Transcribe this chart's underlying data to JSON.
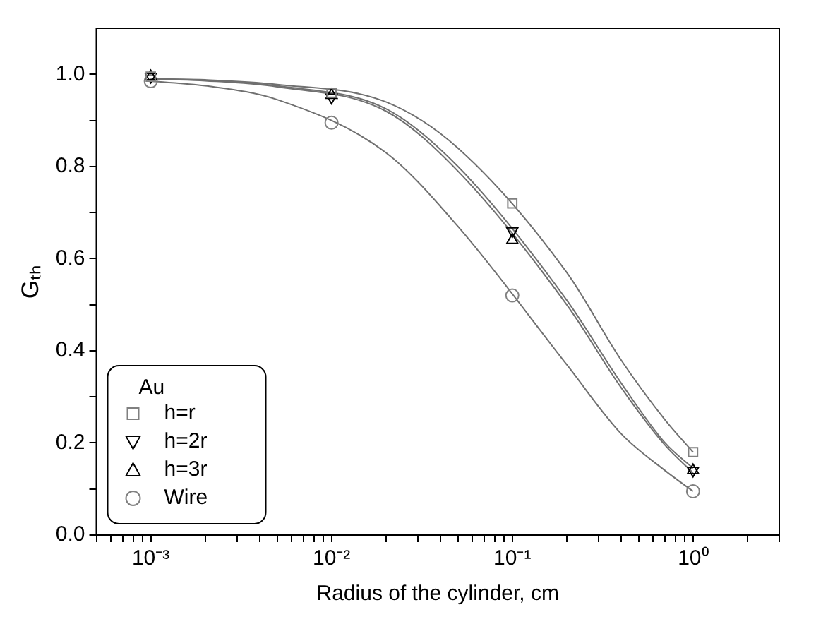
{
  "chart_data": {
    "type": "scatter",
    "xlabel": "Radius of the cylinder, cm",
    "ylabel": "Gₜₕ",
    "log": "x",
    "legend": "bottom left",
    "legend_title": "Au",
    "grid": false,
    "xlim": [
      0.0005,
      3
    ],
    "ylim": [
      0,
      1.1
    ],
    "xticks": [
      {
        "value": 0.0005,
        "label": null
      },
      {
        "value": 0.0006,
        "label": null
      },
      {
        "value": 0.0007,
        "label": null
      },
      {
        "value": 0.0008,
        "label": null
      },
      {
        "value": 0.0009,
        "label": null
      },
      {
        "value": 0.001,
        "label": "10⁻³"
      },
      {
        "value": 0.002,
        "label": null
      },
      {
        "value": 0.003,
        "label": null
      },
      {
        "value": 0.004,
        "label": null
      },
      {
        "value": 0.005,
        "label": null
      },
      {
        "value": 0.006,
        "label": null
      },
      {
        "value": 0.007,
        "label": null
      },
      {
        "value": 0.008,
        "label": null
      },
      {
        "value": 0.009,
        "label": null
      },
      {
        "value": 0.01,
        "label": "10⁻²"
      },
      {
        "value": 0.02,
        "label": null
      },
      {
        "value": 0.03,
        "label": null
      },
      {
        "value": 0.04,
        "label": null
      },
      {
        "value": 0.05,
        "label": null
      },
      {
        "value": 0.06,
        "label": null
      },
      {
        "value": 0.07,
        "label": null
      },
      {
        "value": 0.08,
        "label": null
      },
      {
        "value": 0.09,
        "label": null
      },
      {
        "value": 0.1,
        "label": "10⁻¹"
      },
      {
        "value": 0.2,
        "label": null
      },
      {
        "value": 0.3,
        "label": null
      },
      {
        "value": 0.4,
        "label": null
      },
      {
        "value": 0.5,
        "label": null
      },
      {
        "value": 0.6,
        "label": null
      },
      {
        "value": 0.7,
        "label": null
      },
      {
        "value": 0.8,
        "label": null
      },
      {
        "value": 0.9,
        "label": null
      },
      {
        "value": 1,
        "label": "10⁰"
      },
      {
        "value": 2,
        "label": null
      },
      {
        "value": 3,
        "label": null
      }
    ],
    "yticks": [
      {
        "value": 0,
        "label": "0.0"
      },
      {
        "value": 0.1,
        "label": null
      },
      {
        "value": 0.2,
        "label": "0.2"
      },
      {
        "value": 0.3,
        "label": null
      },
      {
        "value": 0.4,
        "label": "0.4"
      },
      {
        "value": 0.5,
        "label": null
      },
      {
        "value": 0.6,
        "label": "0.6"
      },
      {
        "value": 0.7,
        "label": null
      },
      {
        "value": 0.8,
        "label": "0.8"
      },
      {
        "value": 0.9,
        "label": null
      },
      {
        "value": 1,
        "label": "1.0"
      }
    ],
    "series": [
      {
        "name": "h=r",
        "color": "#808080",
        "marker": "square",
        "x": [
          0.001,
          0.01,
          0.1,
          1
        ],
        "values": [
          0.995,
          0.96,
          0.72,
          0.18
        ]
      },
      {
        "name": "h=2r",
        "color": "#000000",
        "marker": "triangle-down",
        "x": [
          0.001,
          0.01,
          0.1,
          1
        ],
        "values": [
          0.995,
          0.95,
          0.66,
          0.14
        ]
      },
      {
        "name": "h=3r",
        "color": "#000000",
        "marker": "triangle",
        "x": [
          0.001,
          0.01,
          0.1,
          1
        ],
        "values": [
          0.995,
          0.955,
          0.64,
          0.14
        ]
      },
      {
        "name": "Wire",
        "color": "#808080",
        "marker": "circle",
        "x": [
          0.001,
          0.01,
          0.1,
          1
        ],
        "values": [
          0.985,
          0.895,
          0.52,
          0.095
        ]
      },
      {
        "type": "line",
        "color": "#707070",
        "marker": "none",
        "x": [
          0.001,
          0.002,
          0.005,
          0.02,
          0.05,
          0.2,
          0.4,
          0.7,
          1
        ],
        "values": [
          0.99,
          0.988,
          0.978,
          0.94,
          0.84,
          0.57,
          0.38,
          0.25,
          0.18
        ]
      },
      {
        "type": "line",
        "color": "#707070",
        "marker": "none",
        "x": [
          0.001,
          0.002,
          0.005,
          0.02,
          0.05,
          0.2,
          0.4,
          0.7,
          1
        ],
        "values": [
          0.99,
          0.987,
          0.975,
          0.925,
          0.8,
          0.51,
          0.33,
          0.2,
          0.145
        ]
      },
      {
        "type": "line",
        "color": "#707070",
        "marker": "none",
        "x": [
          0.001,
          0.002,
          0.005,
          0.02,
          0.05,
          0.2,
          0.4,
          0.7,
          1
        ],
        "values": [
          0.99,
          0.986,
          0.973,
          0.92,
          0.79,
          0.5,
          0.32,
          0.195,
          0.135
        ]
      },
      {
        "type": "line",
        "color": "#707070",
        "marker": "none",
        "x": [
          0.001,
          0.002,
          0.005,
          0.02,
          0.05,
          0.2,
          0.4,
          0.7,
          1
        ],
        "values": [
          0.985,
          0.975,
          0.945,
          0.83,
          0.67,
          0.37,
          0.22,
          0.14,
          0.095
        ]
      }
    ]
  }
}
